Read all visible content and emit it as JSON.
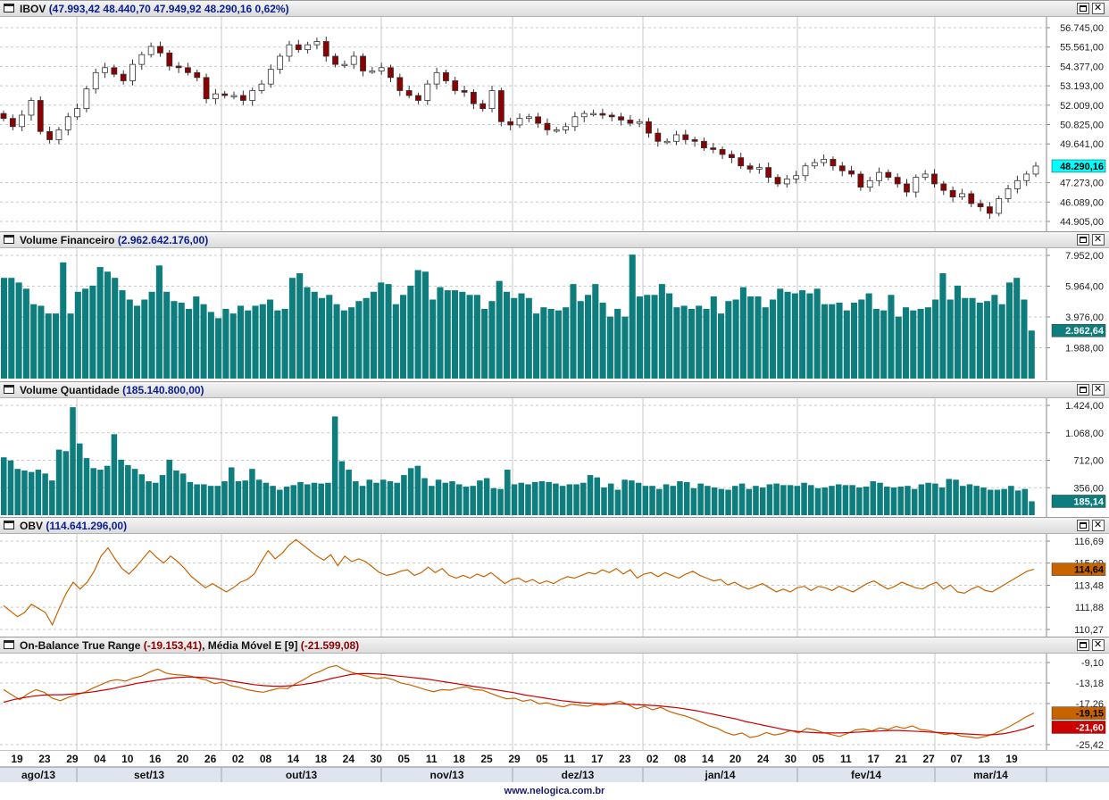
{
  "panels": [
    {
      "id": "ibov",
      "title": "IBOV",
      "values": "(47.993,42  48.440,70  47.949,92  48.290,16  0,62%)",
      "ticks": [
        "56.745,00",
        "55.561,00",
        "54.377,00",
        "53.193,00",
        "52.009,00",
        "50.825,00",
        "49.641,00",
        "47.273,00",
        "46.089,00",
        "44.905,00"
      ],
      "last_label": "48.290,16"
    },
    {
      "id": "volfin",
      "title": "Volume Financeiro",
      "values": "(2.962.642.176,00)",
      "ticks": [
        "7.952,00",
        "5.964,00",
        "3.976,00",
        "1.988,00"
      ],
      "last_label": "2.962,64"
    },
    {
      "id": "volqtd",
      "title": "Volume Quantidade",
      "values": "(185.140.800,00)",
      "ticks": [
        "1.424,00",
        "1.068,00",
        "712,00",
        "356,00"
      ],
      "last_label": "185,14"
    },
    {
      "id": "obv",
      "title": "OBV",
      "values": "(114.641.296,00)",
      "ticks": [
        "116,69",
        "115,09",
        "113,48",
        "111,88",
        "110,27"
      ],
      "last_label": "114,64"
    },
    {
      "id": "obtr",
      "title": "On-Balance True Range",
      "values": "(-19.153,41)",
      "title2": ", Média Móvel E [9]",
      "values2": "(-21.599,08)",
      "ticks": [
        "-9,10",
        "-13,18",
        "-17,26",
        "-25,42"
      ],
      "last_label": "-19,15",
      "last_label2": "-21,60"
    }
  ],
  "x_axis": {
    "days": [
      "19",
      "23",
      "29",
      "04",
      "10",
      "16",
      "20",
      "26",
      "02",
      "08",
      "14",
      "18",
      "24",
      "30",
      "05",
      "11",
      "18",
      "25",
      "29",
      "05",
      "11",
      "17",
      "23",
      "02",
      "08",
      "14",
      "20",
      "24",
      "30",
      "05",
      "11",
      "17",
      "21",
      "27",
      "07",
      "13",
      "19"
    ],
    "months": [
      "ago/13",
      "set/13",
      "out/13",
      "nov/13",
      "dez/13",
      "jan/14",
      "fev/14",
      "mar/14"
    ]
  },
  "footer": "www.nelogica.com.br",
  "colors": {
    "up": "#ffffff",
    "down": "#8b0000",
    "volume": "#0e7d7d",
    "obv": "#c86400",
    "obtr": "#c86400",
    "ema": "#cc0000",
    "grid": "#c8c8c8"
  },
  "chart_data": [
    {
      "type": "candlestick",
      "title": "IBOV",
      "ylim": [
        44905,
        56745
      ],
      "last": {
        "open": 47993.42,
        "high": 48440.7,
        "low": 47949.92,
        "close": 48290.16,
        "change": "0,62%"
      },
      "closes": [
        51200,
        50700,
        51400,
        52300,
        50400,
        49900,
        50500,
        51300,
        51800,
        53000,
        54000,
        54300,
        53900,
        53500,
        54500,
        55100,
        55600,
        55200,
        54400,
        54300,
        54000,
        53700,
        52400,
        52700,
        52600,
        52600,
        52300,
        52900,
        53300,
        54200,
        55000,
        55700,
        55400,
        55700,
        55900,
        55000,
        54500,
        54500,
        55000,
        54100,
        54100,
        54300,
        53700,
        52900,
        52600,
        52300,
        53300,
        54000,
        53500,
        52900,
        52800,
        52100,
        51800,
        52900,
        51000,
        50800,
        51200,
        51300,
        50900,
        50500,
        50500,
        50700,
        51300,
        51500,
        51500,
        51400,
        51300,
        51100,
        50900,
        51000,
        50300,
        49800,
        49800,
        50200,
        49900,
        49800,
        49400,
        49300,
        49000,
        48800,
        48300,
        48100,
        48200,
        47600,
        47200,
        47500,
        47700,
        48300,
        48500,
        48700,
        48300,
        48000,
        47800,
        47000,
        47400,
        47900,
        47600,
        47200,
        46700,
        47600,
        47800,
        47200,
        46800,
        46400,
        46600,
        46000,
        45800,
        45400,
        46300,
        46900,
        47400,
        47800,
        48290.16
      ]
    },
    {
      "type": "bar",
      "title": "Volume Financeiro",
      "ylim": [
        0,
        7952
      ],
      "unit": "millions",
      "values": [
        6500,
        6500,
        6200,
        5800,
        4800,
        4700,
        4200,
        4200,
        7500,
        4200,
        5600,
        5800,
        6000,
        7200,
        6900,
        6500,
        5700,
        5100,
        4700,
        5100,
        5600,
        7300,
        5600,
        5000,
        4900,
        4500,
        5300,
        4800,
        4300,
        3900,
        4500,
        4200,
        4700,
        4400,
        4700,
        4800,
        5100,
        4400,
        4500,
        6500,
        6800,
        5900,
        5600,
        5200,
        5400,
        4800,
        4400,
        4600,
        5000,
        5200,
        5600,
        6200,
        6100,
        4800,
        5400,
        6000,
        7000,
        6900,
        5100,
        5900,
        5700,
        5700,
        5600,
        5400,
        5400,
        4500,
        5000,
        6300,
        5600,
        5200,
        5500,
        5200,
        4200,
        4600,
        4500,
        4400,
        4600,
        6100,
        5000,
        5400,
        6100,
        4900,
        4000,
        4500,
        4000,
        8000,
        5300,
        5400,
        5400,
        6100,
        5500,
        4600,
        4700,
        4500,
        4700,
        4500,
        5300,
        4200,
        5000,
        5100,
        5900,
        5300,
        5300,
        4600,
        5100,
        5800,
        5600,
        5500,
        5700,
        5500,
        5800,
        4800,
        4800,
        4900,
        4400,
        4900,
        5100,
        5500,
        4500,
        4400,
        5400,
        4000,
        4600,
        4400,
        4500,
        4600,
        5100,
        6800,
        5100,
        6000,
        5200,
        5200,
        4900,
        5000,
        5400,
        4800,
        6200,
        6500,
        5100,
        3100
      ]
    },
    {
      "type": "bar",
      "title": "Volume Quantidade",
      "ylim": [
        0,
        1424
      ],
      "unit": "millions",
      "values": [
        750,
        710,
        600,
        580,
        560,
        590,
        540,
        450,
        850,
        830,
        1400,
        930,
        740,
        610,
        590,
        640,
        1050,
        720,
        650,
        600,
        530,
        440,
        420,
        520,
        720,
        580,
        540,
        430,
        400,
        400,
        380,
        380,
        440,
        620,
        440,
        450,
        600,
        460,
        420,
        380,
        330,
        370,
        390,
        430,
        400,
        420,
        410,
        420,
        1280,
        700,
        590,
        440,
        380,
        460,
        420,
        460,
        440,
        420,
        520,
        610,
        640,
        480,
        380,
        460,
        420,
        440,
        400,
        370,
        380,
        450,
        480,
        350,
        340,
        590,
        400,
        420,
        400,
        430,
        440,
        430,
        410,
        380,
        400,
        400,
        420,
        520,
        490,
        360,
        410,
        330,
        460,
        450,
        420,
        380,
        380,
        340,
        400,
        380,
        440,
        430,
        350,
        410,
        380,
        360,
        340,
        330,
        380,
        410,
        340,
        380,
        360,
        400,
        410,
        390,
        390,
        380,
        420,
        390,
        350,
        360,
        380,
        400,
        390,
        390,
        360,
        370,
        440,
        420,
        370,
        360,
        370,
        380,
        340,
        400,
        420,
        410,
        360,
        470,
        460,
        380,
        400,
        380,
        360,
        330,
        330,
        340,
        380,
        320,
        340,
        180
      ]
    },
    {
      "type": "line",
      "title": "OBV",
      "ylim": [
        110.27,
        116.69
      ],
      "values": [
        112.0,
        111.6,
        111.2,
        111.5,
        112.1,
        111.8,
        111.5,
        110.6,
        111.8,
        112.9,
        113.7,
        113.2,
        113.7,
        114.5,
        115.6,
        116.2,
        115.4,
        114.7,
        114.3,
        114.8,
        115.4,
        116.0,
        115.5,
        115.1,
        115.6,
        115.2,
        114.7,
        114.1,
        113.7,
        113.3,
        113.6,
        113.3,
        113.0,
        113.3,
        113.7,
        113.9,
        114.3,
        115.2,
        116.0,
        115.4,
        115.8,
        116.4,
        116.8,
        116.4,
        116.0,
        115.6,
        115.3,
        115.7,
        114.9,
        115.6,
        115.2,
        115.4,
        115.2,
        114.8,
        114.4,
        114.2,
        114.3,
        114.5,
        114.6,
        114.2,
        114.4,
        114.8,
        114.4,
        114.7,
        114.2,
        114.0,
        114.2,
        114.0,
        114.3,
        114.1,
        114.4,
        114.0,
        113.6,
        113.9,
        114.0,
        113.7,
        113.9,
        113.6,
        113.8,
        113.6,
        113.9,
        114.1,
        114.0,
        114.2,
        114.4,
        114.3,
        114.6,
        114.4,
        114.7,
        114.3,
        114.6,
        114.0,
        114.3,
        114.4,
        114.1,
        114.4,
        114.2,
        114.0,
        114.3,
        114.5,
        114.2,
        114.0,
        113.8,
        113.9,
        113.5,
        113.7,
        113.4,
        113.2,
        113.4,
        113.6,
        113.3,
        113.0,
        113.2,
        113.0,
        113.3,
        113.4,
        113.1,
        113.4,
        113.3,
        113.1,
        113.4,
        113.2,
        113.0,
        113.3,
        113.6,
        113.8,
        113.5,
        113.2,
        113.4,
        113.7,
        113.5,
        113.3,
        113.2,
        113.5,
        113.7,
        113.2,
        113.5,
        113.0,
        112.9,
        113.2,
        113.4,
        113.1,
        113.0,
        113.3,
        113.6,
        113.9,
        114.2,
        114.5,
        114.64
      ]
    },
    {
      "type": "line",
      "title": "On-Balance True Range",
      "ylim": [
        -25.42,
        -9.1
      ],
      "series": [
        {
          "name": "On-Balance True Range",
          "values": [
            -14.5,
            -15.5,
            -16.5,
            -15.3,
            -14.5,
            -15.0,
            -16.2,
            -16.7,
            -16.0,
            -15.5,
            -15.0,
            -14.2,
            -13.5,
            -12.8,
            -12.5,
            -12.8,
            -12.2,
            -11.8,
            -11.0,
            -10.4,
            -11.2,
            -11.5,
            -11.6,
            -11.8,
            -12.2,
            -12.6,
            -13.3,
            -13.0,
            -13.7,
            -14.0,
            -14.5,
            -14.8,
            -15.0,
            -14.6,
            -14.2,
            -14.3,
            -13.3,
            -12.5,
            -11.5,
            -10.9,
            -10.1,
            -9.7,
            -10.5,
            -11.1,
            -11.5,
            -11.9,
            -12.3,
            -12.1,
            -12.5,
            -13.2,
            -13.5,
            -14.0,
            -14.5,
            -14.9,
            -14.5,
            -14.6,
            -14.2,
            -13.9,
            -14.5,
            -14.6,
            -15.2,
            -15.8,
            -16.3,
            -16.2,
            -16.8,
            -16.5,
            -17.3,
            -17.1,
            -17.6,
            -17.9,
            -17.4,
            -17.6,
            -17.8,
            -17.4,
            -17.6,
            -17.2,
            -16.8,
            -17.5,
            -18.3,
            -17.8,
            -18.5,
            -18.0,
            -18.8,
            -19.3,
            -19.7,
            -20.3,
            -21.0,
            -21.7,
            -22.2,
            -23.0,
            -23.5,
            -23.1,
            -24.0,
            -23.7,
            -23.0,
            -23.5,
            -23.2,
            -22.6,
            -23.1,
            -22.2,
            -22.5,
            -23.0,
            -23.4,
            -23.8,
            -23.2,
            -22.5,
            -22.3,
            -22.7,
            -22.1,
            -22.4,
            -21.8,
            -22.2,
            -21.7,
            -22.4,
            -22.6,
            -23.0,
            -23.4,
            -23.2,
            -23.7,
            -23.9,
            -24.1,
            -23.8,
            -23.3,
            -22.6,
            -21.8,
            -20.9,
            -19.9,
            -19.15
          ]
        },
        {
          "name": "Média Móvel E [9]",
          "values": [
            -17.0,
            -16.5,
            -16.1,
            -15.8,
            -15.6,
            -15.5,
            -15.5,
            -15.4,
            -15.2,
            -15.0,
            -14.7,
            -14.4,
            -14.0,
            -13.6,
            -13.2,
            -12.9,
            -12.6,
            -12.3,
            -12.1,
            -12.0,
            -12.0,
            -12.1,
            -12.3,
            -12.6,
            -12.9,
            -13.2,
            -13.5,
            -13.7,
            -13.8,
            -13.8,
            -13.7,
            -13.5,
            -13.2,
            -12.8,
            -12.3,
            -11.9,
            -11.5,
            -11.3,
            -11.3,
            -11.4,
            -11.6,
            -11.8,
            -12.0,
            -12.2,
            -12.4,
            -12.7,
            -13.0,
            -13.3,
            -13.6,
            -13.9,
            -14.2,
            -14.5,
            -14.8,
            -15.1,
            -15.5,
            -15.8,
            -16.1,
            -16.4,
            -16.7,
            -16.9,
            -17.1,
            -17.2,
            -17.3,
            -17.3,
            -17.3,
            -17.4,
            -17.5,
            -17.6,
            -17.7,
            -17.9,
            -18.1,
            -18.4,
            -18.7,
            -19.1,
            -19.5,
            -19.9,
            -20.3,
            -20.8,
            -21.2,
            -21.6,
            -22.0,
            -22.4,
            -22.7,
            -22.9,
            -23.0,
            -23.1,
            -23.1,
            -23.1,
            -23.0,
            -22.9,
            -22.8,
            -22.7,
            -22.6,
            -22.6,
            -22.7,
            -22.8,
            -22.9,
            -23.0,
            -23.1,
            -23.2,
            -23.3,
            -23.4,
            -23.5,
            -23.4,
            -23.2,
            -22.8,
            -22.3,
            -21.6
          ]
        }
      ]
    }
  ]
}
